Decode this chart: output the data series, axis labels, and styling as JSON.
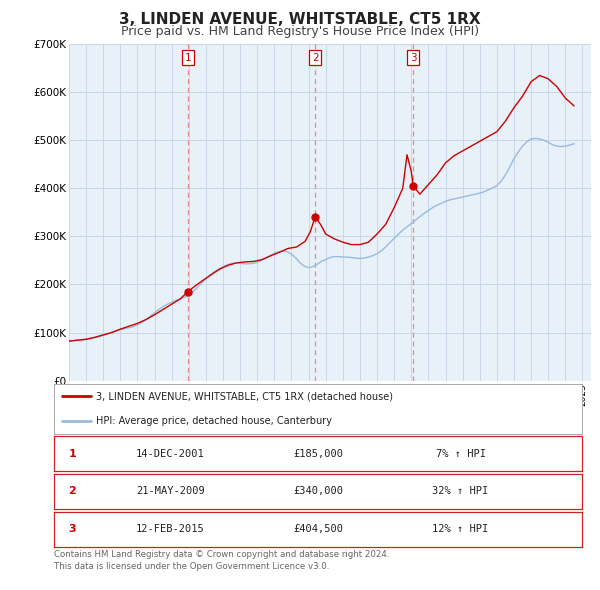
{
  "title": "3, LINDEN AVENUE, WHITSTABLE, CT5 1RX",
  "subtitle": "Price paid vs. HM Land Registry's House Price Index (HPI)",
  "title_fontsize": 11,
  "subtitle_fontsize": 9,
  "background_color": "#ffffff",
  "plot_bg_color": "#e8f0f8",
  "grid_color": "#c8d8e8",
  "ylim": [
    0,
    700000
  ],
  "yticks": [
    0,
    100000,
    200000,
    300000,
    400000,
    500000,
    600000,
    700000
  ],
  "ytick_labels": [
    "£0",
    "£100K",
    "£200K",
    "£300K",
    "£400K",
    "£500K",
    "£600K",
    "£700K"
  ],
  "xlim_start": 1995.0,
  "xlim_end": 2025.5,
  "line1_color": "#cc0000",
  "line2_color": "#99bbdd",
  "sale_marker_color": "#cc0000",
  "vline_color": "#ee8888",
  "sales": [
    {
      "num": 1,
      "year": 2001.95,
      "price": 185000,
      "date": "14-DEC-2001",
      "pct": "7%",
      "dir": "↑"
    },
    {
      "num": 2,
      "year": 2009.38,
      "price": 340000,
      "date": "21-MAY-2009",
      "pct": "32%",
      "dir": "↑"
    },
    {
      "num": 3,
      "year": 2015.12,
      "price": 404500,
      "date": "12-FEB-2015",
      "pct": "12%",
      "dir": "↑"
    }
  ],
  "legend_label1": "3, LINDEN AVENUE, WHITSTABLE, CT5 1RX (detached house)",
  "legend_label2": "HPI: Average price, detached house, Canterbury",
  "footer1": "Contains HM Land Registry data © Crown copyright and database right 2024.",
  "footer2": "This data is licensed under the Open Government Licence v3.0.",
  "hpi_years": [
    1995.0,
    1995.25,
    1995.5,
    1995.75,
    1996.0,
    1996.25,
    1996.5,
    1996.75,
    1997.0,
    1997.25,
    1997.5,
    1997.75,
    1998.0,
    1998.25,
    1998.5,
    1998.75,
    1999.0,
    1999.25,
    1999.5,
    1999.75,
    2000.0,
    2000.25,
    2000.5,
    2000.75,
    2001.0,
    2001.25,
    2001.5,
    2001.75,
    2002.0,
    2002.25,
    2002.5,
    2002.75,
    2003.0,
    2003.25,
    2003.5,
    2003.75,
    2004.0,
    2004.25,
    2004.5,
    2004.75,
    2005.0,
    2005.25,
    2005.5,
    2005.75,
    2006.0,
    2006.25,
    2006.5,
    2006.75,
    2007.0,
    2007.25,
    2007.5,
    2007.75,
    2008.0,
    2008.25,
    2008.5,
    2008.75,
    2009.0,
    2009.25,
    2009.5,
    2009.75,
    2010.0,
    2010.25,
    2010.5,
    2010.75,
    2011.0,
    2011.25,
    2011.5,
    2011.75,
    2012.0,
    2012.25,
    2012.5,
    2012.75,
    2013.0,
    2013.25,
    2013.5,
    2013.75,
    2014.0,
    2014.25,
    2014.5,
    2014.75,
    2015.0,
    2015.25,
    2015.5,
    2015.75,
    2016.0,
    2016.25,
    2016.5,
    2016.75,
    2017.0,
    2017.25,
    2017.5,
    2017.75,
    2018.0,
    2018.25,
    2018.5,
    2018.75,
    2019.0,
    2019.25,
    2019.5,
    2019.75,
    2020.0,
    2020.25,
    2020.5,
    2020.75,
    2021.0,
    2021.25,
    2021.5,
    2021.75,
    2022.0,
    2022.25,
    2022.5,
    2022.75,
    2023.0,
    2023.25,
    2023.5,
    2023.75,
    2024.0,
    2024.25,
    2024.5
  ],
  "hpi_values": [
    82000,
    83000,
    84000,
    84500,
    85000,
    87000,
    89000,
    91000,
    94000,
    97000,
    100000,
    103000,
    106000,
    108000,
    110000,
    112000,
    116000,
    121000,
    127000,
    134000,
    141000,
    148000,
    154000,
    159000,
    163000,
    167000,
    170000,
    173000,
    178000,
    185000,
    194000,
    203000,
    212000,
    220000,
    227000,
    232000,
    237000,
    241000,
    244000,
    245000,
    244000,
    243000,
    243000,
    244000,
    246000,
    250000,
    255000,
    260000,
    265000,
    268000,
    270000,
    268000,
    263000,
    255000,
    245000,
    238000,
    235000,
    237000,
    242000,
    248000,
    252000,
    256000,
    258000,
    258000,
    257000,
    257000,
    256000,
    255000,
    254000,
    255000,
    257000,
    260000,
    264000,
    270000,
    278000,
    287000,
    296000,
    305000,
    313000,
    320000,
    327000,
    334000,
    341000,
    348000,
    354000,
    360000,
    365000,
    369000,
    373000,
    376000,
    378000,
    380000,
    382000,
    384000,
    386000,
    388000,
    390000,
    393000,
    397000,
    401000,
    406000,
    415000,
    428000,
    444000,
    462000,
    476000,
    488000,
    497000,
    503000,
    504000,
    503000,
    500000,
    496000,
    491000,
    488000,
    487000,
    488000,
    490000,
    493000
  ],
  "price_years": [
    1995.0,
    1995.5,
    1996.0,
    1996.5,
    1997.0,
    1997.5,
    1998.0,
    1998.5,
    1999.0,
    1999.5,
    2000.0,
    2000.5,
    2001.0,
    2001.5,
    2001.95,
    2002.3,
    2002.8,
    2003.3,
    2003.8,
    2004.3,
    2004.8,
    2005.3,
    2005.8,
    2006.3,
    2006.8,
    2007.3,
    2007.8,
    2008.3,
    2008.8,
    2009.1,
    2009.38,
    2009.7,
    2010.0,
    2010.5,
    2011.0,
    2011.5,
    2012.0,
    2012.5,
    2013.0,
    2013.5,
    2014.0,
    2014.5,
    2014.75,
    2015.0,
    2015.12,
    2015.5,
    2016.0,
    2016.5,
    2017.0,
    2017.5,
    2018.0,
    2018.5,
    2019.0,
    2019.5,
    2020.0,
    2020.5,
    2021.0,
    2021.5,
    2022.0,
    2022.5,
    2023.0,
    2023.5,
    2024.0,
    2024.5
  ],
  "price_values": [
    82000,
    84000,
    86000,
    90000,
    95000,
    100000,
    107000,
    113000,
    119000,
    127000,
    137000,
    148000,
    159000,
    170000,
    185000,
    195000,
    208000,
    220000,
    232000,
    240000,
    245000,
    247000,
    248000,
    252000,
    260000,
    267000,
    275000,
    278000,
    290000,
    310000,
    340000,
    325000,
    305000,
    295000,
    288000,
    283000,
    283000,
    288000,
    305000,
    325000,
    360000,
    400000,
    470000,
    435000,
    404500,
    388000,
    408000,
    428000,
    453000,
    468000,
    478000,
    488000,
    498000,
    508000,
    518000,
    540000,
    568000,
    592000,
    622000,
    635000,
    628000,
    612000,
    588000,
    572000
  ]
}
